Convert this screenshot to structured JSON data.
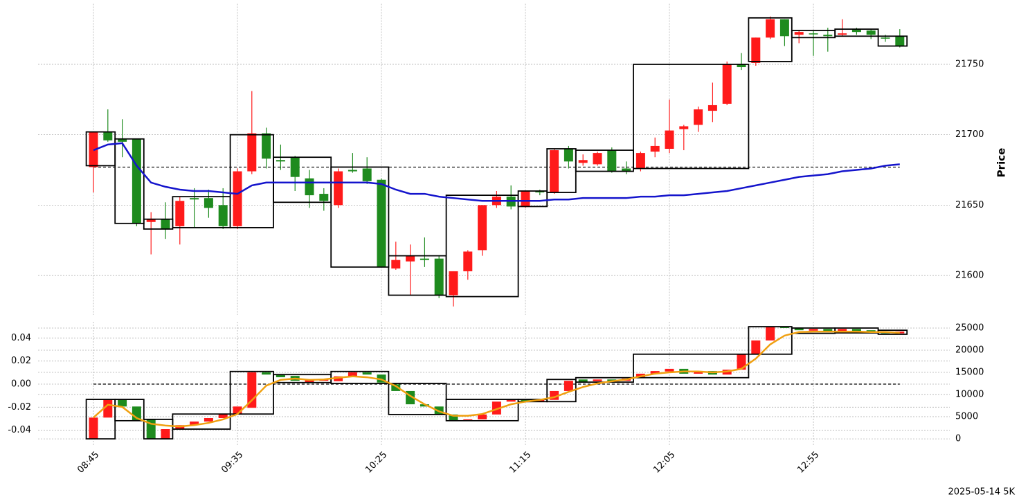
{
  "chart_data": [
    {
      "type": "candlestick",
      "ylabel": "Price",
      "categories": [
        "08:45",
        null,
        null,
        null,
        null,
        null,
        null,
        null,
        null,
        null,
        "09:35",
        null,
        null,
        null,
        null,
        null,
        null,
        null,
        null,
        null,
        "10:25",
        null,
        null,
        null,
        null,
        null,
        null,
        null,
        null,
        null,
        "11:15",
        null,
        null,
        null,
        null,
        null,
        null,
        null,
        null,
        null,
        "12:05",
        null,
        null,
        null,
        null,
        null,
        null,
        null,
        null,
        null,
        "12:55",
        null,
        null,
        null,
        null,
        null,
        null
      ],
      "open": [
        21677,
        21702,
        21697,
        21697,
        21638,
        21640,
        21635,
        21655,
        21655,
        21650,
        21635,
        21674,
        21701,
        21682,
        21684,
        21669,
        21658,
        21650,
        21675,
        21676,
        21668,
        21605,
        21610,
        21612,
        21612,
        21586,
        21603,
        21618,
        21650,
        21656,
        21649,
        21660,
        21659,
        21690,
        21680,
        21679,
        21689,
        21676,
        21676,
        21688,
        21690,
        21704,
        21707,
        21717,
        21722,
        21750,
        21751,
        21769,
        21782,
        21771,
        21772,
        21771,
        21771,
        21775,
        21774,
        21769,
        21770
      ],
      "high": [
        21702,
        21718,
        21711,
        21697,
        21645,
        21652,
        21656,
        21662,
        21661,
        21662,
        21676,
        21731,
        21705,
        21693,
        21685,
        21675,
        21662,
        21676,
        21687,
        21684,
        21669,
        21624,
        21622,
        21627,
        21614,
        21603,
        21618,
        21650,
        21660,
        21664,
        21660,
        21661,
        21690,
        21692,
        21686,
        21688,
        21691,
        21681,
        21688,
        21698,
        21725,
        21707,
        21720,
        21737,
        21752,
        21758,
        21769,
        21784,
        21782,
        21774,
        21774,
        21776,
        21782,
        21776,
        21775,
        21771,
        21775
      ],
      "low": [
        21659,
        21695,
        21684,
        21635,
        21615,
        21626,
        21622,
        21634,
        21641,
        21633,
        21633,
        21672,
        21676,
        21675,
        21660,
        21648,
        21646,
        21648,
        21673,
        21665,
        21606,
        21604,
        21586,
        21606,
        21584,
        21578,
        21597,
        21614,
        21648,
        21647,
        21648,
        21657,
        21658,
        21676,
        21678,
        21678,
        21673,
        21672,
        21674,
        21684,
        21687,
        21689,
        21702,
        21709,
        21721,
        21746,
        21749,
        21768,
        21763,
        21765,
        21756,
        21759,
        21770,
        21771,
        21768,
        21766,
        21762
      ],
      "close": [
        21702,
        21696,
        21695,
        21637,
        21640,
        21633,
        21653,
        21654,
        21648,
        21635,
        21674,
        21701,
        21683,
        21681,
        21670,
        21657,
        21653,
        21674,
        21674,
        21667,
        21606,
        21611,
        21614,
        21611,
        21586,
        21603,
        21617,
        21650,
        21656,
        21649,
        21660,
        21659,
        21689,
        21681,
        21682,
        21687,
        21674,
        21674,
        21687,
        21692,
        21703,
        21706,
        21718,
        21721,
        21750,
        21748,
        21769,
        21782,
        21770,
        21773,
        21772,
        21770,
        21772,
        21773,
        21771,
        21769,
        21763
      ],
      "up_color": "#ff1a1a",
      "down_color": "#1e8b1e",
      "boxes": [
        {
          "start": 0,
          "end": 1,
          "high": 21702,
          "low": 21678
        },
        {
          "start": 2,
          "end": 3,
          "high": 21697,
          "low": 21637
        },
        {
          "start": 4,
          "end": 5,
          "high": 21640,
          "low": 21633
        },
        {
          "start": 6,
          "end": 9,
          "high": 21656,
          "low": 21634
        },
        {
          "start": 10,
          "end": 12,
          "high": 21700,
          "low": 21634
        },
        {
          "start": 13,
          "end": 16,
          "high": 21684,
          "low": 21652
        },
        {
          "start": 17,
          "end": 20,
          "high": 21677,
          "low": 21606
        },
        {
          "start": 21,
          "end": 24,
          "high": 21614,
          "low": 21586
        },
        {
          "start": 25,
          "end": 29,
          "high": 21657,
          "low": 21585
        },
        {
          "start": 30,
          "end": 31,
          "high": 21660,
          "low": 21649
        },
        {
          "start": 32,
          "end": 33,
          "high": 21690,
          "low": 21659
        },
        {
          "start": 34,
          "end": 37,
          "high": 21689,
          "low": 21674
        },
        {
          "start": 38,
          "end": 45,
          "high": 21750,
          "low": 21676
        },
        {
          "start": 46,
          "end": 48,
          "high": 21783,
          "low": 21752
        },
        {
          "start": 49,
          "end": 51,
          "high": 21774,
          "low": 21769
        },
        {
          "start": 52,
          "end": 54,
          "high": 21775,
          "low": 21770
        },
        {
          "start": 55,
          "end": 56,
          "high": 21770,
          "low": 21763
        }
      ],
      "line": {
        "color": "#1414cc",
        "values": [
          21689,
          21693,
          21694,
          21678,
          21666,
          21663,
          21661,
          21660,
          21660,
          21659,
          21658,
          21664,
          21666,
          21666,
          21666,
          21666,
          21666,
          21666,
          21666,
          21666,
          21665,
          21661,
          21658,
          21658,
          21656,
          21655,
          21654,
          21653,
          21653,
          21653,
          21653,
          21653,
          21654,
          21654,
          21655,
          21655,
          21655,
          21655,
          21656,
          21656,
          21657,
          21657,
          21658,
          21659,
          21660,
          21662,
          21664,
          21666,
          21668,
          21670,
          21671,
          21672,
          21674,
          21675,
          21676,
          21678,
          21679
        ]
      },
      "reference_line": 21677,
      "ylim": [
        21572,
        21793
      ],
      "yticks": [
        21600,
        21650,
        21700,
        21750
      ],
      "grid": true
    },
    {
      "type": "candlestick",
      "open": [
        0,
        4800,
        8900,
        7300,
        4400,
        0,
        2200,
        3100,
        3900,
        4700,
        5600,
        7000,
        15000,
        14500,
        14200,
        12800,
        13100,
        13000,
        14100,
        15000,
        14500,
        12300,
        10800,
        7800,
        7300,
        5500,
        4100,
        4400,
        5500,
        8400,
        8900,
        8400,
        8800,
        10800,
        13400,
        13000,
        13400,
        13100,
        13800,
        14700,
        15200,
        15800,
        14700,
        15300,
        14500,
        15600,
        19100,
        22200,
        25300,
        25000,
        24400,
        24800,
        24300,
        24800,
        24500,
        24100,
        23800
      ],
      "close": [
        4800,
        8900,
        7300,
        4100,
        0,
        2200,
        3100,
        3900,
        4700,
        5600,
        7300,
        15000,
        14500,
        13900,
        13100,
        13300,
        13400,
        14100,
        15000,
        14500,
        12700,
        10800,
        7800,
        7300,
        5500,
        4100,
        4400,
        5500,
        8400,
        8900,
        8400,
        8900,
        10800,
        13100,
        12800,
        13400,
        13000,
        13600,
        14700,
        15300,
        15800,
        14700,
        15300,
        14500,
        15600,
        19100,
        22200,
        25300,
        25000,
        24500,
        24800,
        24300,
        24800,
        24200,
        23900,
        23800,
        24200
      ],
      "up_color": "#ff1a1a",
      "down_color": "#1e8b1e",
      "boxes": [
        {
          "start": 0,
          "end": 1,
          "high": 8900,
          "low": 0
        },
        {
          "start": 2,
          "end": 3,
          "high": 8900,
          "low": 4100
        },
        {
          "start": 4,
          "end": 5,
          "high": 4400,
          "low": 0
        },
        {
          "start": 6,
          "end": 9,
          "high": 5600,
          "low": 2200
        },
        {
          "start": 10,
          "end": 12,
          "high": 15200,
          "low": 5600
        },
        {
          "start": 13,
          "end": 16,
          "high": 14500,
          "low": 12700
        },
        {
          "start": 17,
          "end": 20,
          "high": 15200,
          "low": 12500
        },
        {
          "start": 21,
          "end": 24,
          "high": 12500,
          "low": 5500
        },
        {
          "start": 25,
          "end": 29,
          "high": 8900,
          "low": 4100
        },
        {
          "start": 30,
          "end": 31,
          "high": 8900,
          "low": 8400
        },
        {
          "start": 32,
          "end": 33,
          "high": 13400,
          "low": 8400
        },
        {
          "start": 34,
          "end": 37,
          "high": 13800,
          "low": 12800
        },
        {
          "start": 38,
          "end": 45,
          "high": 19100,
          "low": 13800
        },
        {
          "start": 46,
          "end": 48,
          "high": 25300,
          "low": 19100
        },
        {
          "start": 49,
          "end": 51,
          "high": 25000,
          "low": 23800
        },
        {
          "start": 52,
          "end": 54,
          "high": 25000,
          "low": 23900
        },
        {
          "start": 55,
          "end": 56,
          "high": 24500,
          "low": 23600
        }
      ],
      "line": {
        "color": "#f0a010",
        "values": [
          4800,
          7700,
          7200,
          4700,
          3400,
          3000,
          2800,
          3100,
          3600,
          4400,
          5600,
          8700,
          12000,
          13300,
          13600,
          13300,
          13400,
          13800,
          14100,
          13900,
          13400,
          11900,
          9700,
          7800,
          6200,
          5200,
          5200,
          5600,
          6700,
          7800,
          8400,
          8800,
          9400,
          10600,
          11700,
          12500,
          13000,
          13400,
          14100,
          14700,
          15000,
          15200,
          15200,
          15000,
          15200,
          15800,
          18100,
          21300,
          23300,
          24100,
          24200,
          24200,
          24200,
          24200,
          24100,
          24100,
          23900
        ]
      },
      "reference_line": 0,
      "ylim": [
        -0.054,
        0.054
      ],
      "yticks": [
        -0.04,
        -0.02,
        {
          "value": 0,
          "label": "0.00"
        },
        0.02,
        0.04
      ],
      "y2lim": [
        -1700,
        26400
      ],
      "y2ticks": [
        0,
        5000,
        10000,
        15000,
        20000,
        25000
      ],
      "grid": true
    }
  ],
  "footer": "2025-05-14 5K"
}
